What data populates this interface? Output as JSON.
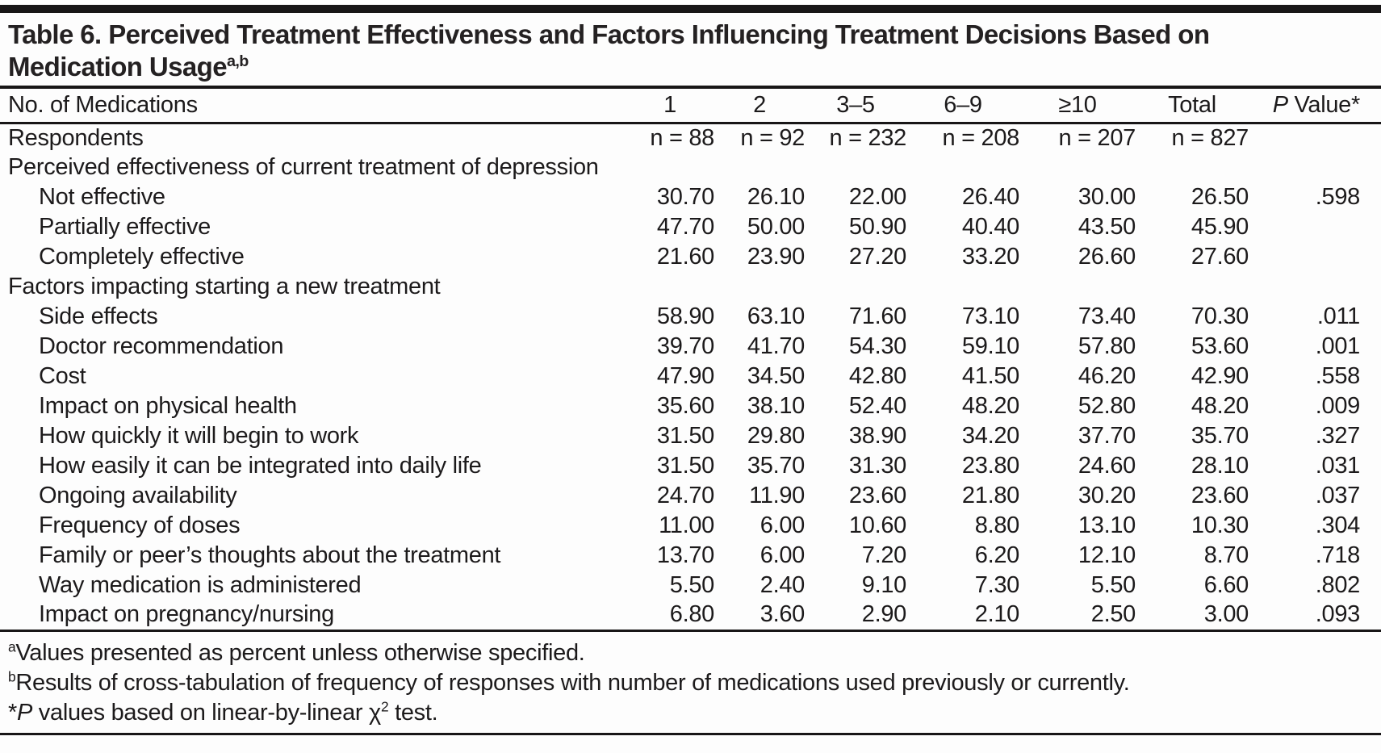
{
  "page": {
    "background_color": "#fdfdfd",
    "text_color": "#1c1a1b",
    "rule_color": "#181617"
  },
  "table": {
    "title": {
      "line1": "Table 6. Perceived Treatment Effectiveness and Factors Influencing Treatment Decisions Based on",
      "line2": "Medication Usage",
      "superscript": "a,b"
    },
    "columns": {
      "label_header": "No. of Medications",
      "groups": [
        "1",
        "2",
        "3–5",
        "6–9",
        "≥10",
        "Total"
      ],
      "p_value": {
        "italic": "P",
        "rest": " Value*"
      }
    },
    "respondents": {
      "label": "Respondents",
      "values": [
        "n = 88",
        "n = 92",
        "n = 232",
        "n = 208",
        "n = 207",
        "n = 827"
      ],
      "p": ""
    },
    "sections": [
      {
        "header": "Perceived effectiveness of current treatment of depression",
        "rows": [
          {
            "label": "Not effective",
            "values": [
              "30.70",
              "26.10",
              "22.00",
              "26.40",
              "30.00",
              "26.50"
            ],
            "p": ".598"
          },
          {
            "label": "Partially effective",
            "values": [
              "47.70",
              "50.00",
              "50.90",
              "40.40",
              "43.50",
              "45.90"
            ],
            "p": ""
          },
          {
            "label": "Completely effective",
            "values": [
              "21.60",
              "23.90",
              "27.20",
              "33.20",
              "26.60",
              "27.60"
            ],
            "p": ""
          }
        ]
      },
      {
        "header": "Factors impacting starting a new treatment",
        "rows": [
          {
            "label": "Side effects",
            "values": [
              "58.90",
              "63.10",
              "71.60",
              "73.10",
              "73.40",
              "70.30"
            ],
            "p": ".011"
          },
          {
            "label": "Doctor recommendation",
            "values": [
              "39.70",
              "41.70",
              "54.30",
              "59.10",
              "57.80",
              "53.60"
            ],
            "p": ".001"
          },
          {
            "label": "Cost",
            "values": [
              "47.90",
              "34.50",
              "42.80",
              "41.50",
              "46.20",
              "42.90"
            ],
            "p": ".558"
          },
          {
            "label": "Impact on physical health",
            "values": [
              "35.60",
              "38.10",
              "52.40",
              "48.20",
              "52.80",
              "48.20"
            ],
            "p": ".009"
          },
          {
            "label": "How quickly it will begin to work",
            "values": [
              "31.50",
              "29.80",
              "38.90",
              "34.20",
              "37.70",
              "35.70"
            ],
            "p": ".327"
          },
          {
            "label": "How easily it can be integrated into daily life",
            "values": [
              "31.50",
              "35.70",
              "31.30",
              "23.80",
              "24.60",
              "28.10"
            ],
            "p": ".031"
          },
          {
            "label": "Ongoing availability",
            "values": [
              "24.70",
              "11.90",
              "23.60",
              "21.80",
              "30.20",
              "23.60"
            ],
            "p": ".037"
          },
          {
            "label": "Frequency of doses",
            "values": [
              "11.00",
              "6.00",
              "10.60",
              "8.80",
              "13.10",
              "10.30"
            ],
            "p": ".304"
          },
          {
            "label": "Family or peer’s thoughts about the treatment",
            "values": [
              "13.70",
              "6.00",
              "7.20",
              "6.20",
              "12.10",
              "8.70"
            ],
            "p": ".718"
          },
          {
            "label": "Way medication is administered",
            "values": [
              "5.50",
              "2.40",
              "9.10",
              "7.30",
              "5.50",
              "6.60"
            ],
            "p": ".802"
          },
          {
            "label": "Impact on pregnancy/nursing",
            "values": [
              "6.80",
              "3.60",
              "2.90",
              "2.10",
              "2.50",
              "3.00"
            ],
            "p": ".093"
          }
        ]
      }
    ],
    "footnotes": [
      {
        "marker": "a",
        "text": "Values presented as percent unless otherwise specified."
      },
      {
        "marker": "b",
        "text": "Results of cross-tabulation of frequency of responses with number of medications used previously or currently."
      },
      {
        "star": "*",
        "italic": "P",
        "text_mid": " values based on linear-by-linear χ",
        "sup": "2",
        "text_end": " test."
      }
    ]
  }
}
